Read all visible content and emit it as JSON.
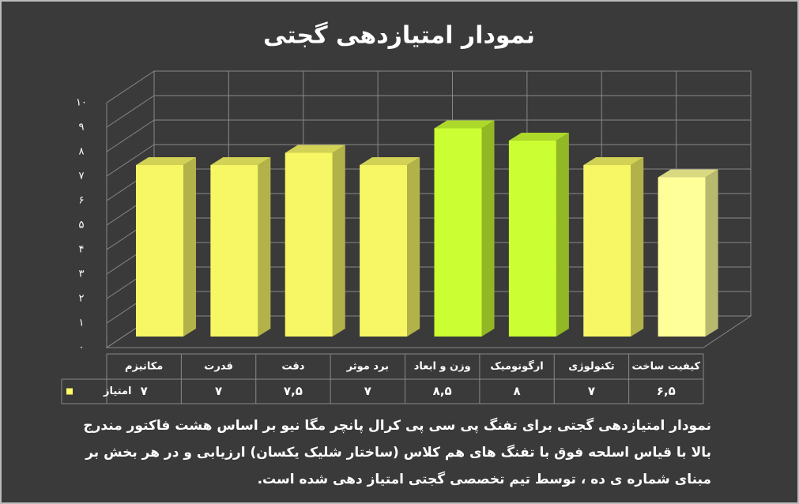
{
  "chart_data": {
    "type": "bar3d",
    "title": "نمودار امتیازدهی گجتی",
    "categories": [
      "مکانیزم",
      "قدرت",
      "دقت",
      "برد موثر",
      "وزن و ابعاد",
      "ارگونومیک",
      "تکنولوژی",
      "کیفیت ساخت"
    ],
    "series": [
      {
        "name": "امتیاز",
        "color": "#ffff66",
        "colors": [
          "#f7f765",
          "#f7f765",
          "#f7f765",
          "#f7f765",
          "#ccff33",
          "#ccff33",
          "#f7f765",
          "#ffff99"
        ],
        "values": [
          7,
          7,
          7.5,
          7,
          8.5,
          8,
          7,
          6.5
        ],
        "value_labels": [
          "۷",
          "۷",
          "۷,۵",
          "۷",
          "۸,۵",
          "۸",
          "۷",
          "۶,۵"
        ]
      }
    ],
    "ylim": [
      0,
      10
    ],
    "yticks": [
      {
        "value": 0,
        "label": "۰"
      },
      {
        "value": 1,
        "label": "۱"
      },
      {
        "value": 2,
        "label": "۲"
      },
      {
        "value": 3,
        "label": "۳"
      },
      {
        "value": 4,
        "label": "۴"
      },
      {
        "value": 5,
        "label": "۵"
      },
      {
        "value": 6,
        "label": "۶"
      },
      {
        "value": 7,
        "label": "۷"
      },
      {
        "value": 8,
        "label": "۸"
      },
      {
        "value": 9,
        "label": "۹"
      },
      {
        "value": 10,
        "label": "۱۰"
      }
    ],
    "grid": true,
    "caption": "نمودار امتیازدهی گجتی برای تفنگ پی سی پی کرال پانچر مگا نیو بر اساس هشت فاکتور مندرج بالا با قیاس اسلحه فوق با تفنگ های هم کلاس (ساختار شلیک یکسان) ارزیابی و در هر بخش بر مبنای شماره ی ده ، توسط تیم تخصصی گجتی امتیاز دهی شده است."
  }
}
